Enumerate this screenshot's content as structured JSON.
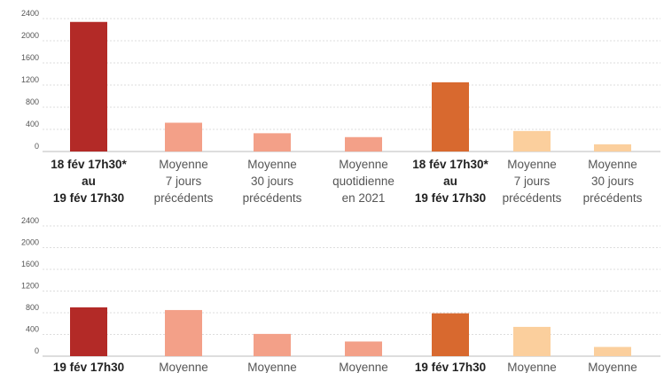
{
  "chart_data": [
    {
      "type": "bar",
      "categories": [
        [
          "18 fév 17h30*",
          "au",
          "19 fév 17h30"
        ],
        [
          "Moyenne",
          "7 jours",
          "précédents"
        ],
        [
          "Moyenne",
          "30 jours",
          "précédents"
        ],
        [
          "Moyenne",
          "quotidienne",
          "en 2021"
        ],
        [
          "18 fév 17h30*",
          "au",
          "19 fév 17h30"
        ],
        [
          "Moyenne",
          "7 jours",
          "précédents"
        ],
        [
          "Moyenne",
          "30 jours",
          "précédents"
        ]
      ],
      "values": [
        2340,
        520,
        330,
        260,
        1250,
        370,
        130
      ],
      "colors": [
        "#b32a27",
        "#f3a088",
        "#f3a088",
        "#f3a088",
        "#d8692f",
        "#fbcf9d",
        "#fbcf9d"
      ],
      "ylim": [
        0,
        2400
      ],
      "yticks": [
        0,
        400,
        800,
        1200,
        1600,
        2000,
        2400
      ],
      "grid": true
    },
    {
      "type": "bar",
      "categories": [
        [
          "19 fév 17h30"
        ],
        [
          "Moyenne"
        ],
        [
          "Moyenne"
        ],
        [
          "Moyenne"
        ],
        [
          "19 fév 17h30"
        ],
        [
          "Moyenne"
        ],
        [
          "Moyenne"
        ]
      ],
      "values": [
        900,
        850,
        410,
        270,
        790,
        540,
        170
      ],
      "colors": [
        "#b32a27",
        "#f3a088",
        "#f3a088",
        "#f3a088",
        "#d8692f",
        "#fbcf9d",
        "#fbcf9d"
      ],
      "ylim": [
        0,
        2400
      ],
      "yticks": [
        0,
        400,
        800,
        1200,
        1600,
        2000,
        2400
      ],
      "grid": true
    }
  ]
}
